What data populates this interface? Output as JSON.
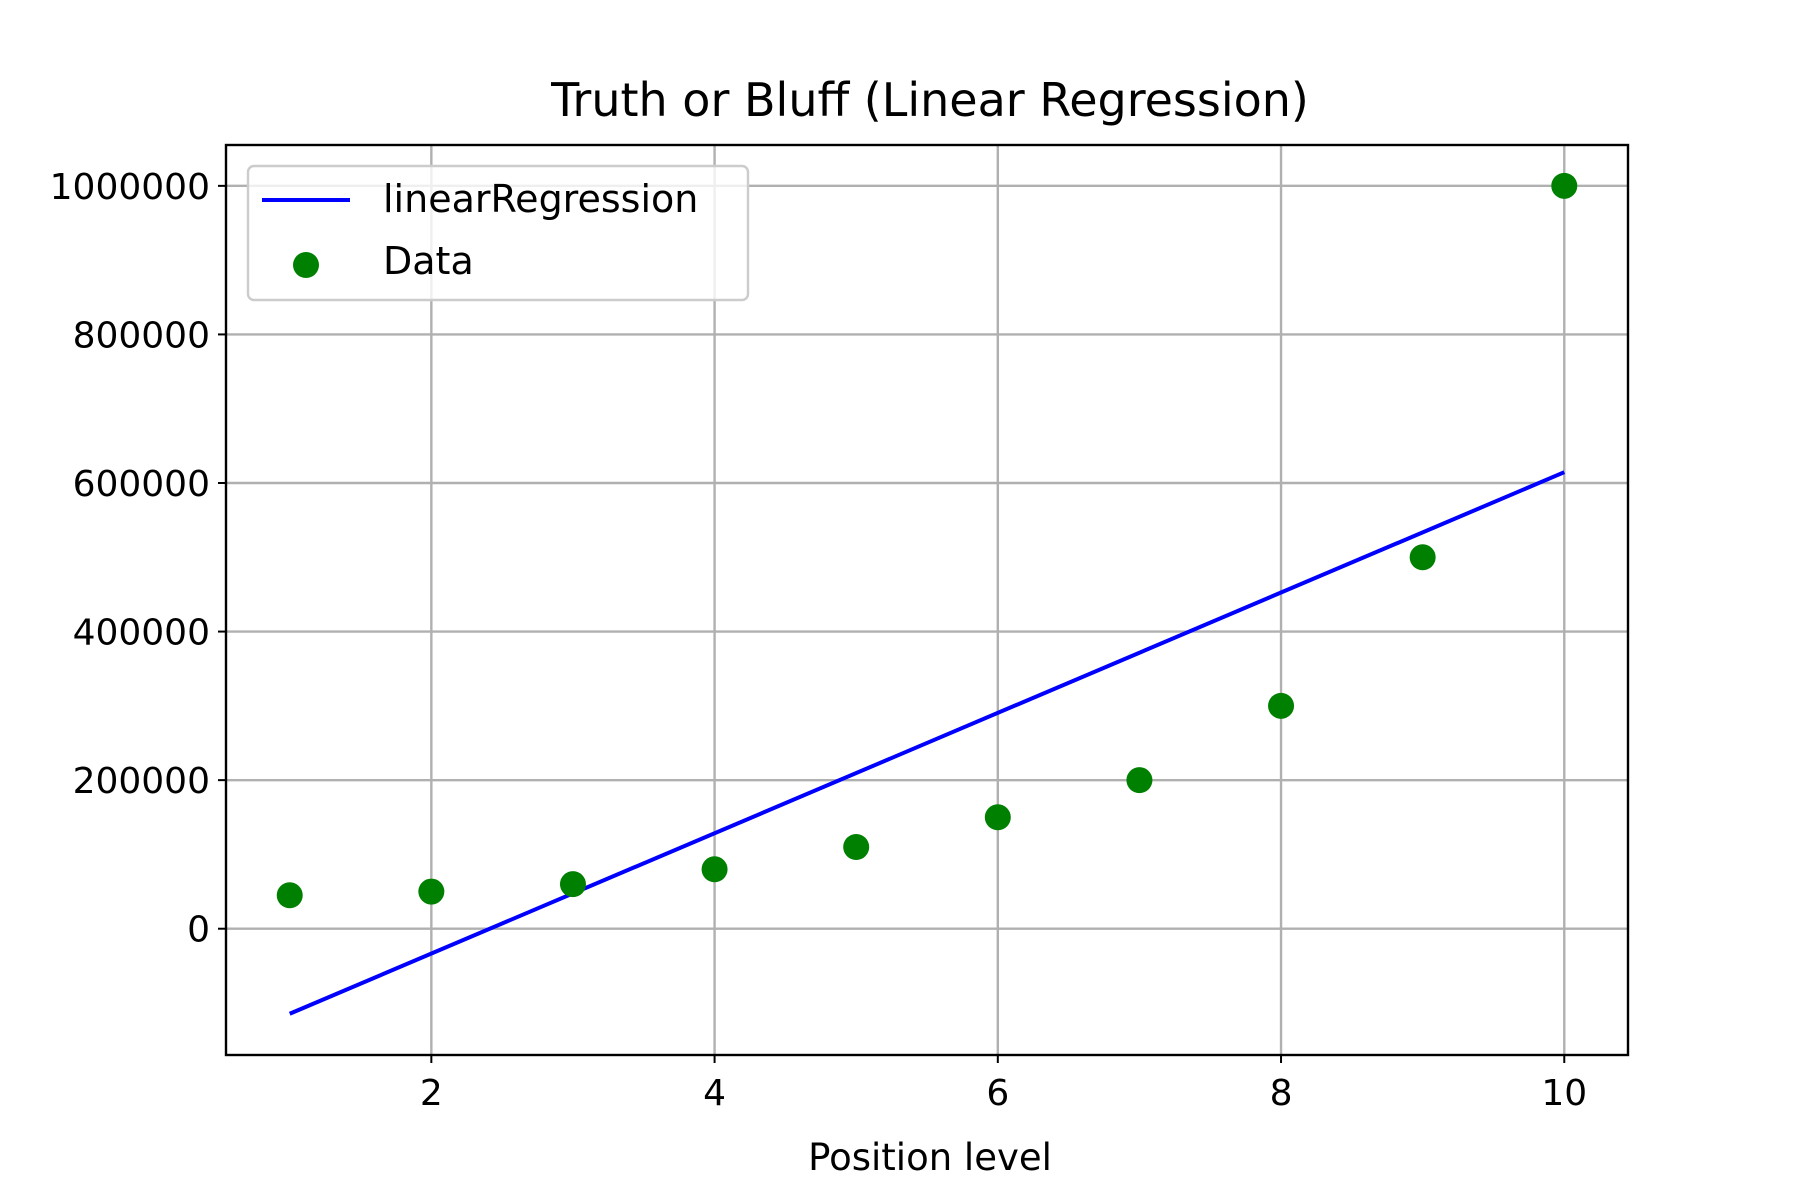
{
  "chart_data": {
    "type": "scatter",
    "title": "Truth or Bluff (Linear Regression)",
    "xlabel": "Position level",
    "ylabel": "",
    "xlim": [
      0.55,
      10.45
    ],
    "ylim": [
      -170000,
      1055000
    ],
    "xticks": [
      2,
      4,
      6,
      8,
      10
    ],
    "xtick_labels": [
      "2",
      "4",
      "6",
      "8",
      "10"
    ],
    "yticks": [
      0,
      200000,
      400000,
      600000,
      800000,
      1000000
    ],
    "ytick_labels": [
      "0",
      "200000",
      "400000",
      "600000",
      "800000",
      "1000000"
    ],
    "grid": true,
    "legend_position": "top-left",
    "series": [
      {
        "name": "linearRegression",
        "kind": "line",
        "color": "#0000ff",
        "x": [
          1,
          10
        ],
        "y": [
          -114454,
          614545
        ]
      },
      {
        "name": "Data",
        "kind": "scatter",
        "color": "#008000",
        "x": [
          1,
          2,
          3,
          4,
          5,
          6,
          7,
          8,
          9,
          10
        ],
        "y": [
          45000,
          50000,
          60000,
          80000,
          110000,
          150000,
          200000,
          300000,
          500000,
          1000000
        ]
      }
    ]
  }
}
